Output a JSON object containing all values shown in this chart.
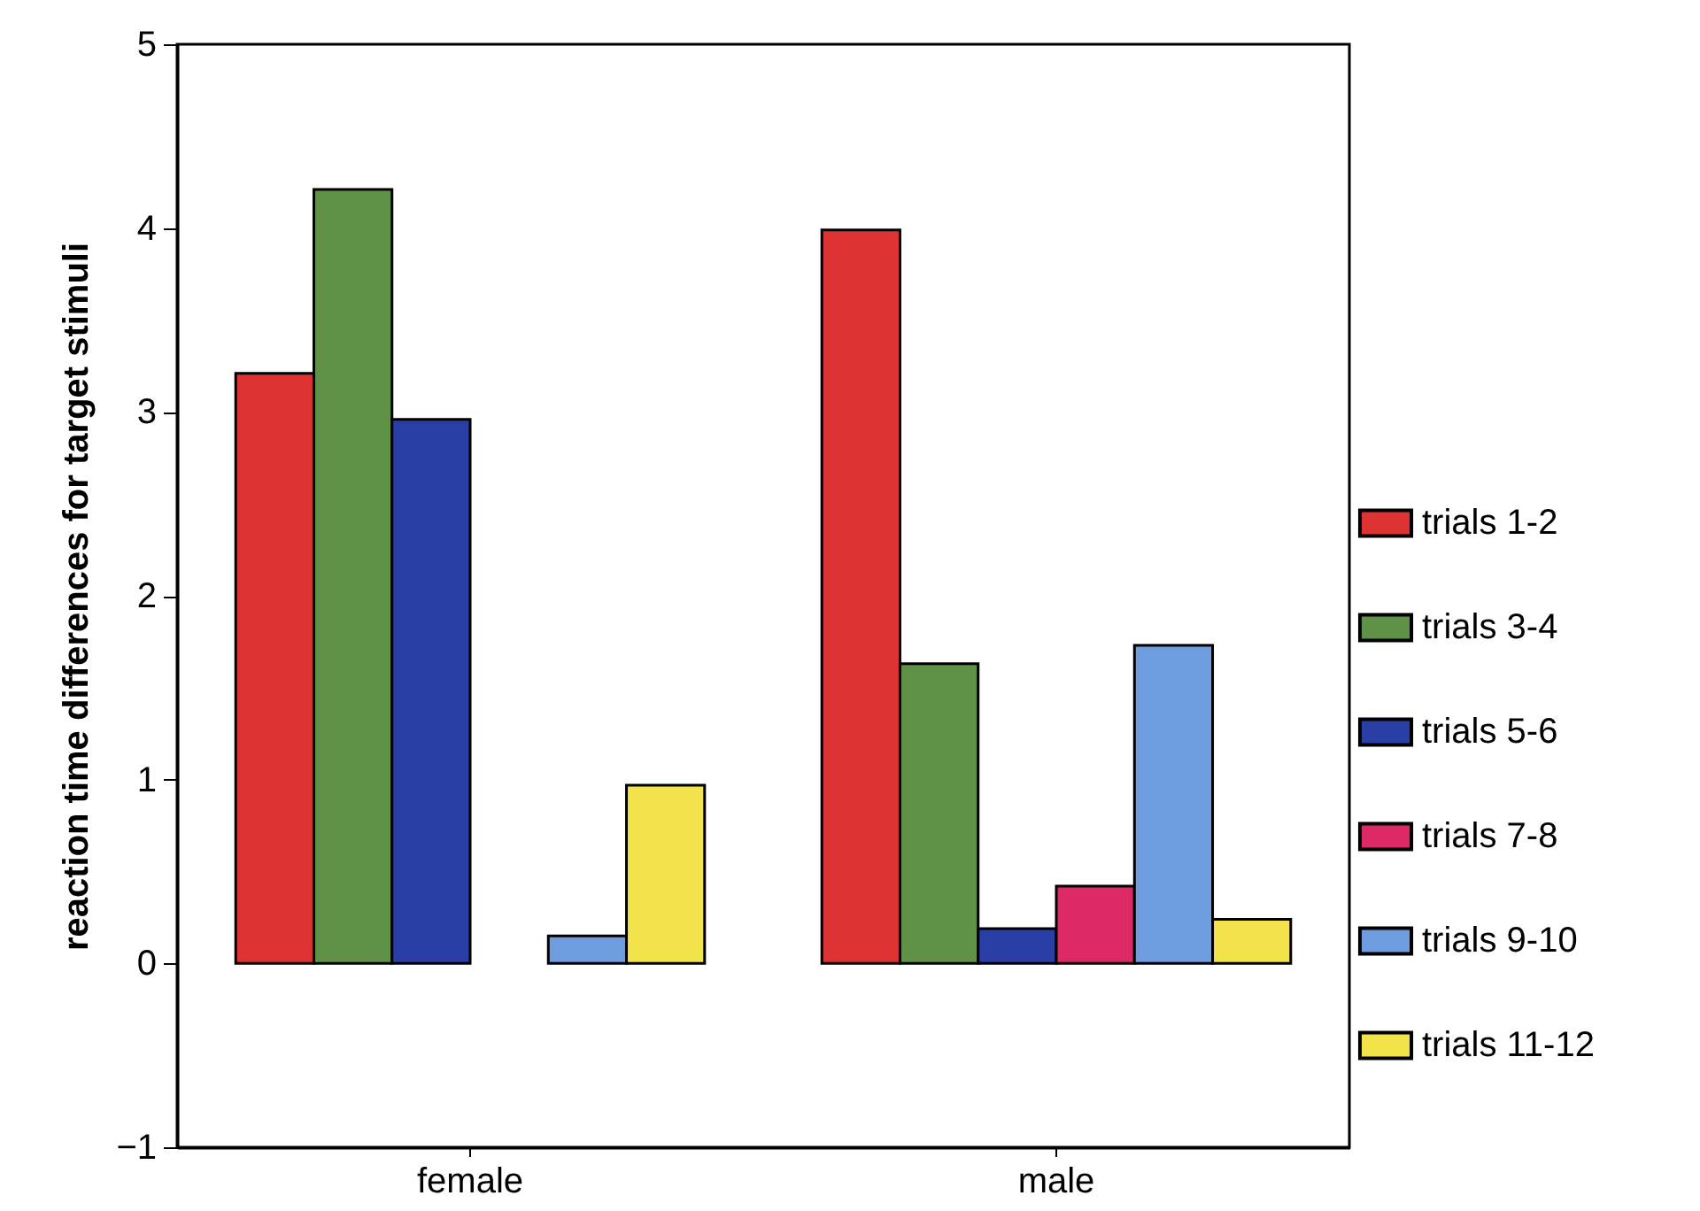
{
  "chart_data": {
    "type": "bar",
    "ylabel": "reaction time differences for target stimuli",
    "categories": [
      "female",
      "male"
    ],
    "series": [
      {
        "name": "trials 1-2",
        "color": "#dd3333",
        "values": [
          3.21,
          3.99
        ]
      },
      {
        "name": "trials 3-4",
        "color": "#5f9146",
        "values": [
          4.21,
          1.63
        ]
      },
      {
        "name": "trials 5-6",
        "color": "#2a3fa6",
        "values": [
          2.96,
          0.19
        ]
      },
      {
        "name": "trials 7-8",
        "color": "#dd2a67",
        "values": [
          null,
          0.42
        ]
      },
      {
        "name": "trials 9-10",
        "color": "#6d9ddf",
        "values": [
          0.15,
          1.73
        ]
      },
      {
        "name": "trials 11-12",
        "color": "#f2e34a",
        "values": [
          0.97,
          0.24
        ]
      }
    ],
    "ylim": [
      -1,
      5
    ],
    "yticks": [
      -1,
      0,
      1,
      2,
      3,
      4,
      5
    ],
    "grid": false,
    "legend": "right"
  }
}
